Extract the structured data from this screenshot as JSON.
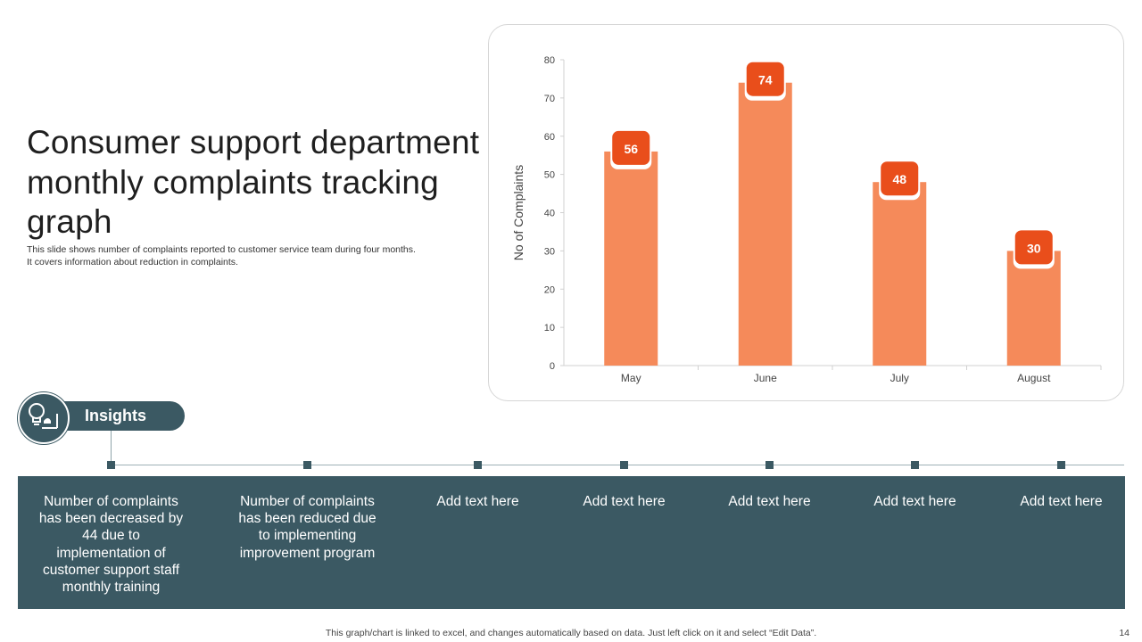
{
  "title": "Consumer support department monthly complaints tracking graph",
  "subtitle_lines": [
    "This slide shows number of complaints reported to customer service team during four months.",
    "It covers information about reduction in complaints."
  ],
  "chart_data": {
    "type": "bar",
    "categories": [
      "May",
      "June",
      "July",
      "August"
    ],
    "values": [
      56,
      74,
      48,
      30
    ],
    "title": "",
    "xlabel": "",
    "ylabel": "No of Complaints",
    "ylim": [
      0,
      80
    ],
    "yticks": [
      0,
      10,
      20,
      30,
      40,
      50,
      60,
      70,
      80
    ],
    "data_labels": true,
    "grid": false,
    "bar_color": "#f58a5a",
    "label_color": "#e94e1b"
  },
  "insights": {
    "label": "Insights",
    "icon": "lightbulb-icon",
    "items": [
      "Number of complaints has been decreased by 44 due to implementation of customer support staff monthly training",
      "Number of complaints has been reduced due to implementing improvement program",
      "Add text here",
      "Add text here",
      "Add text here",
      "Add text here",
      "Add text here"
    ]
  },
  "colors": {
    "panel": "#3b5963",
    "accent": "#e94e1b"
  },
  "footer": "This graph/chart is linked to excel, and changes automatically based on data. Just left click on it and select “Edit Data”.",
  "page_number": "14"
}
